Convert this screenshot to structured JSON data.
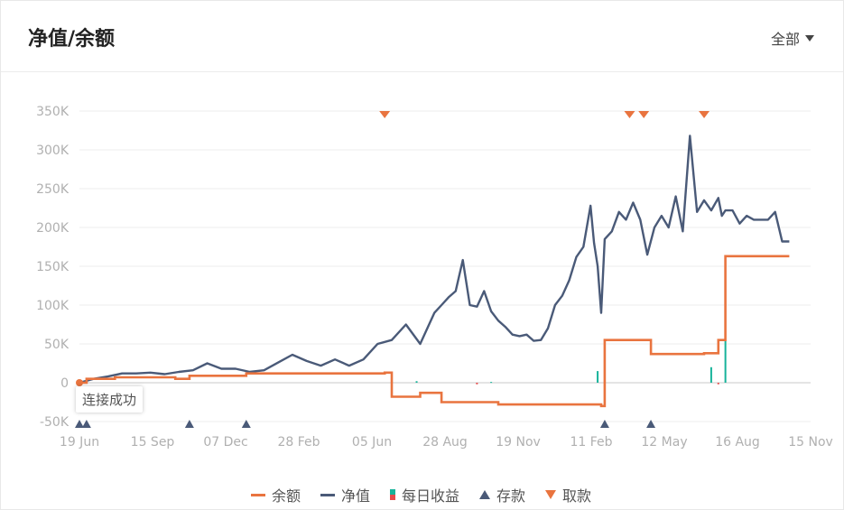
{
  "header": {
    "title": "净值/余额",
    "filter_label": "全部"
  },
  "tooltip": "连接成功",
  "colors": {
    "balance": "#e9743f",
    "equity": "#4a5a78",
    "profit": "#17b39a",
    "loss": "#e64a4a",
    "deposit": "#4a5a78",
    "withdraw": "#e9743f"
  },
  "chart_data": {
    "type": "line",
    "title": "",
    "y_ticks": [
      "350K",
      "300K",
      "250K",
      "200K",
      "150K",
      "100K",
      "50K",
      "0",
      "-50K"
    ],
    "y_tick_values": [
      350000,
      300000,
      250000,
      200000,
      150000,
      100000,
      50000,
      0,
      -50000
    ],
    "ylim": [
      -50000,
      350000
    ],
    "x_ticks": [
      "19 Jun",
      "15 Sep",
      "07 Dec",
      "28 Feb",
      "05 Jun",
      "28 Aug",
      "19 Nov",
      "11 Feb",
      "12 May",
      "16 Aug",
      "15 Nov"
    ],
    "x_domain": [
      0,
      1030
    ],
    "grid": true,
    "legend_placement": "bottom",
    "legend": [
      "余额",
      "净值",
      "每日收益",
      "存款",
      "取款"
    ],
    "series": [
      {
        "name": "余额",
        "x": [
          0,
          10,
          10,
          50,
          50,
          135,
          135,
          155,
          155,
          235,
          235,
          430,
          430,
          440,
          440,
          480,
          480,
          510,
          510,
          590,
          590,
          735,
          735,
          740,
          740,
          805,
          805,
          880,
          880,
          900,
          900,
          910,
          910,
          1000
        ],
        "values": [
          0,
          0,
          5000,
          5000,
          7000,
          7000,
          5000,
          5000,
          9000,
          9000,
          12000,
          12000,
          13000,
          13000,
          -18000,
          -18000,
          -13000,
          -13000,
          -25000,
          -25000,
          -28000,
          -28000,
          -30000,
          -30000,
          55000,
          55000,
          37000,
          37000,
          38000,
          38000,
          55000,
          55000,
          163000,
          163000
        ]
      },
      {
        "name": "净值",
        "x": [
          0,
          20,
          40,
          60,
          80,
          100,
          120,
          140,
          160,
          180,
          200,
          220,
          240,
          260,
          280,
          300,
          320,
          340,
          360,
          380,
          400,
          420,
          440,
          460,
          480,
          500,
          510,
          520,
          530,
          540,
          550,
          560,
          570,
          580,
          590,
          600,
          610,
          620,
          630,
          640,
          650,
          660,
          670,
          680,
          690,
          700,
          710,
          720,
          725,
          730,
          735,
          740,
          750,
          760,
          770,
          780,
          790,
          800,
          810,
          820,
          830,
          840,
          850,
          860,
          870,
          880,
          890,
          900,
          905,
          910,
          920,
          930,
          940,
          950,
          960,
          970,
          980,
          990,
          1000
        ],
        "values": [
          0,
          5000,
          8000,
          12000,
          12000,
          13000,
          11000,
          14000,
          16000,
          25000,
          18000,
          18000,
          14000,
          16000,
          26000,
          36000,
          28000,
          22000,
          30000,
          22000,
          30000,
          50000,
          55000,
          75000,
          50000,
          90000,
          100000,
          110000,
          118000,
          158000,
          100000,
          98000,
          118000,
          92000,
          80000,
          72000,
          62000,
          60000,
          62000,
          54000,
          55000,
          70000,
          100000,
          112000,
          132000,
          162000,
          175000,
          228000,
          180000,
          150000,
          90000,
          185000,
          195000,
          220000,
          210000,
          232000,
          210000,
          165000,
          200000,
          215000,
          200000,
          240000,
          195000,
          318000,
          220000,
          235000,
          222000,
          238000,
          215000,
          222000,
          222000,
          205000,
          215000,
          210000,
          210000,
          210000,
          220000,
          182000,
          182000
        ]
      },
      {
        "name": "每日收益",
        "x": [
          475,
          560,
          580,
          730,
          890,
          900,
          910
        ],
        "values": [
          2000,
          -2000,
          1000,
          15000,
          20000,
          -2000,
          55000
        ]
      },
      {
        "name": "存款",
        "x": [
          0,
          10,
          155,
          235,
          740,
          805
        ]
      },
      {
        "name": "取款",
        "x": [
          430,
          775,
          795,
          880
        ]
      }
    ]
  }
}
